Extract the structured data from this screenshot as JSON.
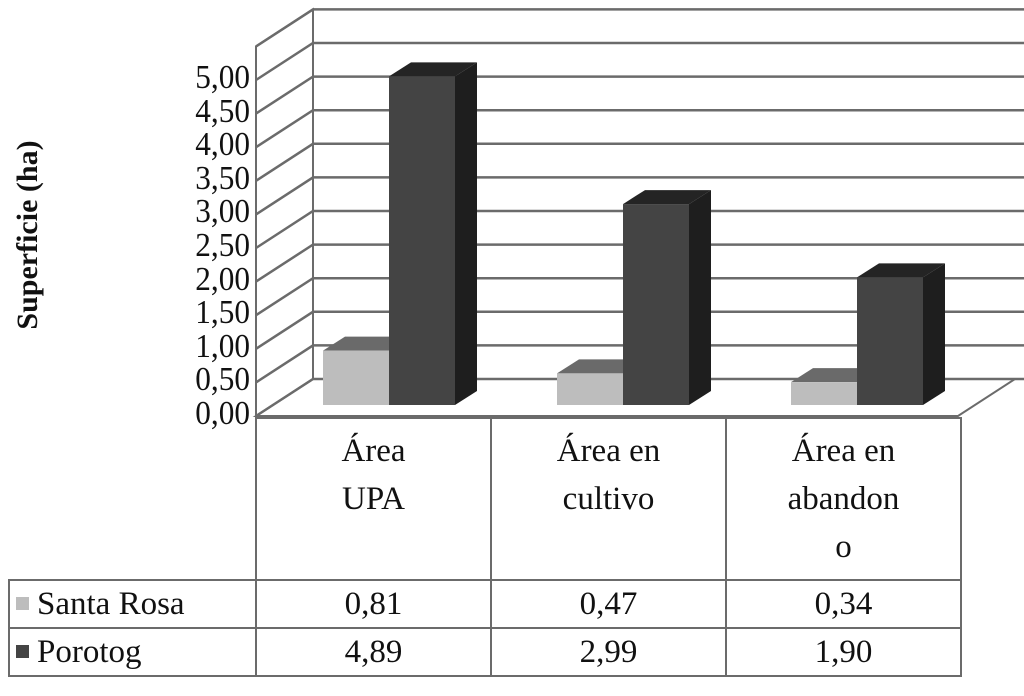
{
  "chart_data": {
    "type": "bar",
    "style": "3d-clustered-column-with-data-table",
    "title": "",
    "xlabel": "",
    "ylabel": "Superficie (ha)",
    "ylim": [
      0,
      5
    ],
    "ytick_step": 0.5,
    "yticks": [
      "0,00",
      "0,50",
      "1,00",
      "1,50",
      "2,00",
      "2,50",
      "3,00",
      "3,50",
      "4,00",
      "4,50",
      "5,00"
    ],
    "grid": true,
    "legend_position": "data-table",
    "categories": [
      "Área UPA",
      "Área en cultivo",
      "Área en abandono"
    ],
    "category_labels_wrapped": [
      [
        "Área",
        "UPA"
      ],
      [
        "Área en",
        "cultivo"
      ],
      [
        "Área en",
        "abandon",
        "o"
      ]
    ],
    "series": [
      {
        "name": "Santa Rosa",
        "color": "#bdbdbd",
        "values": [
          0.81,
          0.47,
          0.34
        ],
        "labels": [
          "0,81",
          "0,47",
          "0,34"
        ]
      },
      {
        "name": "Porotog",
        "color": "#444444",
        "values": [
          4.89,
          2.99,
          1.9
        ],
        "labels": [
          "4,89",
          "2,99",
          "1,90"
        ]
      }
    ]
  }
}
